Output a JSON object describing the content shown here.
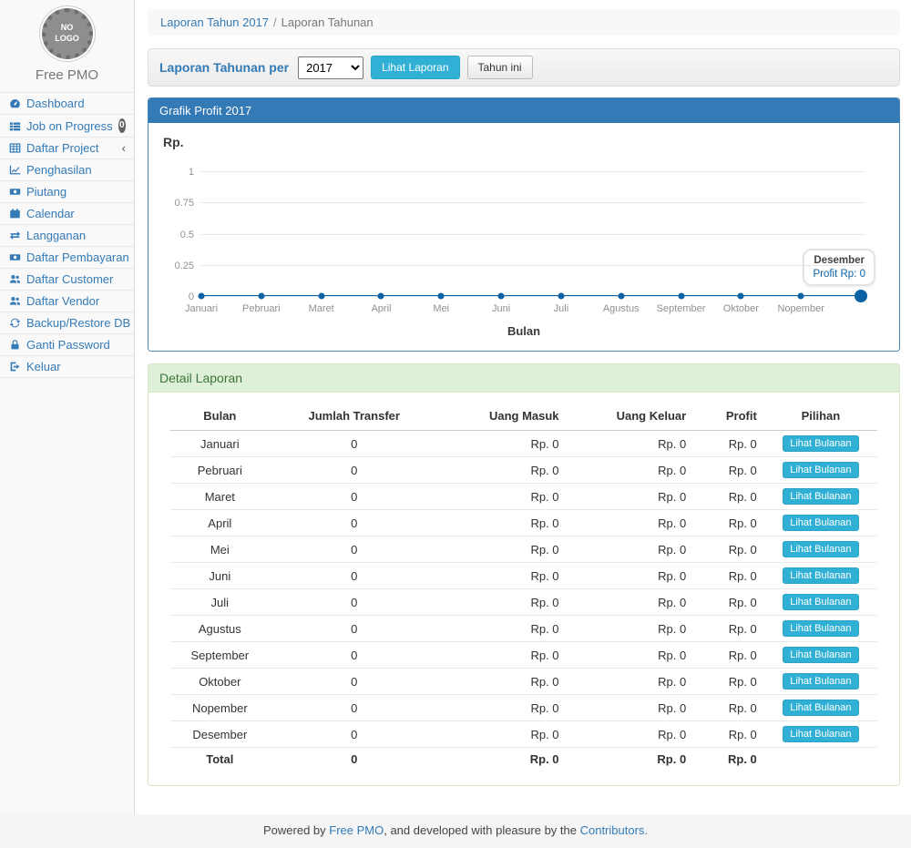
{
  "sidebar": {
    "logo_text": "NO LOGO",
    "brand": "Free PMO",
    "items": [
      {
        "label": "Dashboard",
        "icon": "dashboard-icon"
      },
      {
        "label": "Job on Progress",
        "icon": "list-icon",
        "badge": "0"
      },
      {
        "label": "Daftar Project",
        "icon": "table-icon",
        "chevron": "‹"
      },
      {
        "label": "Penghasilan",
        "icon": "line-chart-icon"
      },
      {
        "label": "Piutang",
        "icon": "money-icon"
      },
      {
        "label": "Calendar",
        "icon": "calendar-icon"
      },
      {
        "label": "Langganan",
        "icon": "exchange-icon"
      },
      {
        "label": "Daftar Pembayaran",
        "icon": "money-icon"
      },
      {
        "label": "Daftar Customer",
        "icon": "users-icon"
      },
      {
        "label": "Daftar Vendor",
        "icon": "users-icon"
      },
      {
        "label": "Backup/Restore DB",
        "icon": "refresh-icon"
      },
      {
        "label": "Ganti Password",
        "icon": "lock-icon"
      },
      {
        "label": "Keluar",
        "icon": "sign-out-icon"
      }
    ]
  },
  "breadcrumb": {
    "link_label": "Laporan Tahun 2017",
    "separator": "/",
    "current": "Laporan Tahunan"
  },
  "filter_bar": {
    "label": "Laporan Tahunan per",
    "year_value": "2017",
    "submit_label": "Lihat Laporan",
    "this_year_label": "Tahun ini"
  },
  "chart_data": {
    "type": "line",
    "title": "Grafik Profit 2017",
    "ylabel": "Rp.",
    "xlabel": "Bulan",
    "categories": [
      "Januari",
      "Pebruari",
      "Maret",
      "April",
      "Mei",
      "Juni",
      "Juli",
      "Agustus",
      "September",
      "Oktober",
      "Nopember",
      "Desember"
    ],
    "series": [
      {
        "name": "Profit",
        "values": [
          0,
          0,
          0,
          0,
          0,
          0,
          0,
          0,
          0,
          0,
          0,
          0
        ]
      }
    ],
    "ylim": [
      0,
      1
    ],
    "yticks": [
      "1",
      "0.75",
      "0.5",
      "0.25",
      "0"
    ],
    "grid": true,
    "legend": "none",
    "tooltip": {
      "label": "Desember",
      "value": "Profit Rp: 0"
    }
  },
  "detail_panel": {
    "title": "Detail Laporan",
    "columns": [
      "Bulan",
      "Jumlah Transfer",
      "Uang Masuk",
      "Uang Keluar",
      "Profit",
      "Pilihan"
    ],
    "action_label": "Lihat Bulanan",
    "rows": [
      {
        "bulan": "Januari",
        "transfer": "0",
        "masuk": "Rp. 0",
        "keluar": "Rp. 0",
        "profit": "Rp. 0"
      },
      {
        "bulan": "Pebruari",
        "transfer": "0",
        "masuk": "Rp. 0",
        "keluar": "Rp. 0",
        "profit": "Rp. 0"
      },
      {
        "bulan": "Maret",
        "transfer": "0",
        "masuk": "Rp. 0",
        "keluar": "Rp. 0",
        "profit": "Rp. 0"
      },
      {
        "bulan": "April",
        "transfer": "0",
        "masuk": "Rp. 0",
        "keluar": "Rp. 0",
        "profit": "Rp. 0"
      },
      {
        "bulan": "Mei",
        "transfer": "0",
        "masuk": "Rp. 0",
        "keluar": "Rp. 0",
        "profit": "Rp. 0"
      },
      {
        "bulan": "Juni",
        "transfer": "0",
        "masuk": "Rp. 0",
        "keluar": "Rp. 0",
        "profit": "Rp. 0"
      },
      {
        "bulan": "Juli",
        "transfer": "0",
        "masuk": "Rp. 0",
        "keluar": "Rp. 0",
        "profit": "Rp. 0"
      },
      {
        "bulan": "Agustus",
        "transfer": "0",
        "masuk": "Rp. 0",
        "keluar": "Rp. 0",
        "profit": "Rp. 0"
      },
      {
        "bulan": "September",
        "transfer": "0",
        "masuk": "Rp. 0",
        "keluar": "Rp. 0",
        "profit": "Rp. 0"
      },
      {
        "bulan": "Oktober",
        "transfer": "0",
        "masuk": "Rp. 0",
        "keluar": "Rp. 0",
        "profit": "Rp. 0"
      },
      {
        "bulan": "Nopember",
        "transfer": "0",
        "masuk": "Rp. 0",
        "keluar": "Rp. 0",
        "profit": "Rp. 0"
      },
      {
        "bulan": "Desember",
        "transfer": "0",
        "masuk": "Rp. 0",
        "keluar": "Rp. 0",
        "profit": "Rp. 0"
      }
    ],
    "total": {
      "bulan": "Total",
      "transfer": "0",
      "masuk": "Rp. 0",
      "keluar": "Rp. 0",
      "profit": "Rp. 0"
    }
  },
  "footer": {
    "text_before": "Powered by ",
    "brand_link": "Free PMO",
    "text_middle": ", and developed with pleasure by the ",
    "contributors_link": "Contributors."
  },
  "colors": {
    "primary_blue": "#337ab7",
    "panel_header_blue": "#337ab7",
    "button_cyan": "#31b0d5",
    "chart_line_blue": "#0b62a4",
    "success_header_bg": "#dff0d8",
    "success_header_text": "#3c763d",
    "sidebar_bg": "#f9f9f9"
  }
}
